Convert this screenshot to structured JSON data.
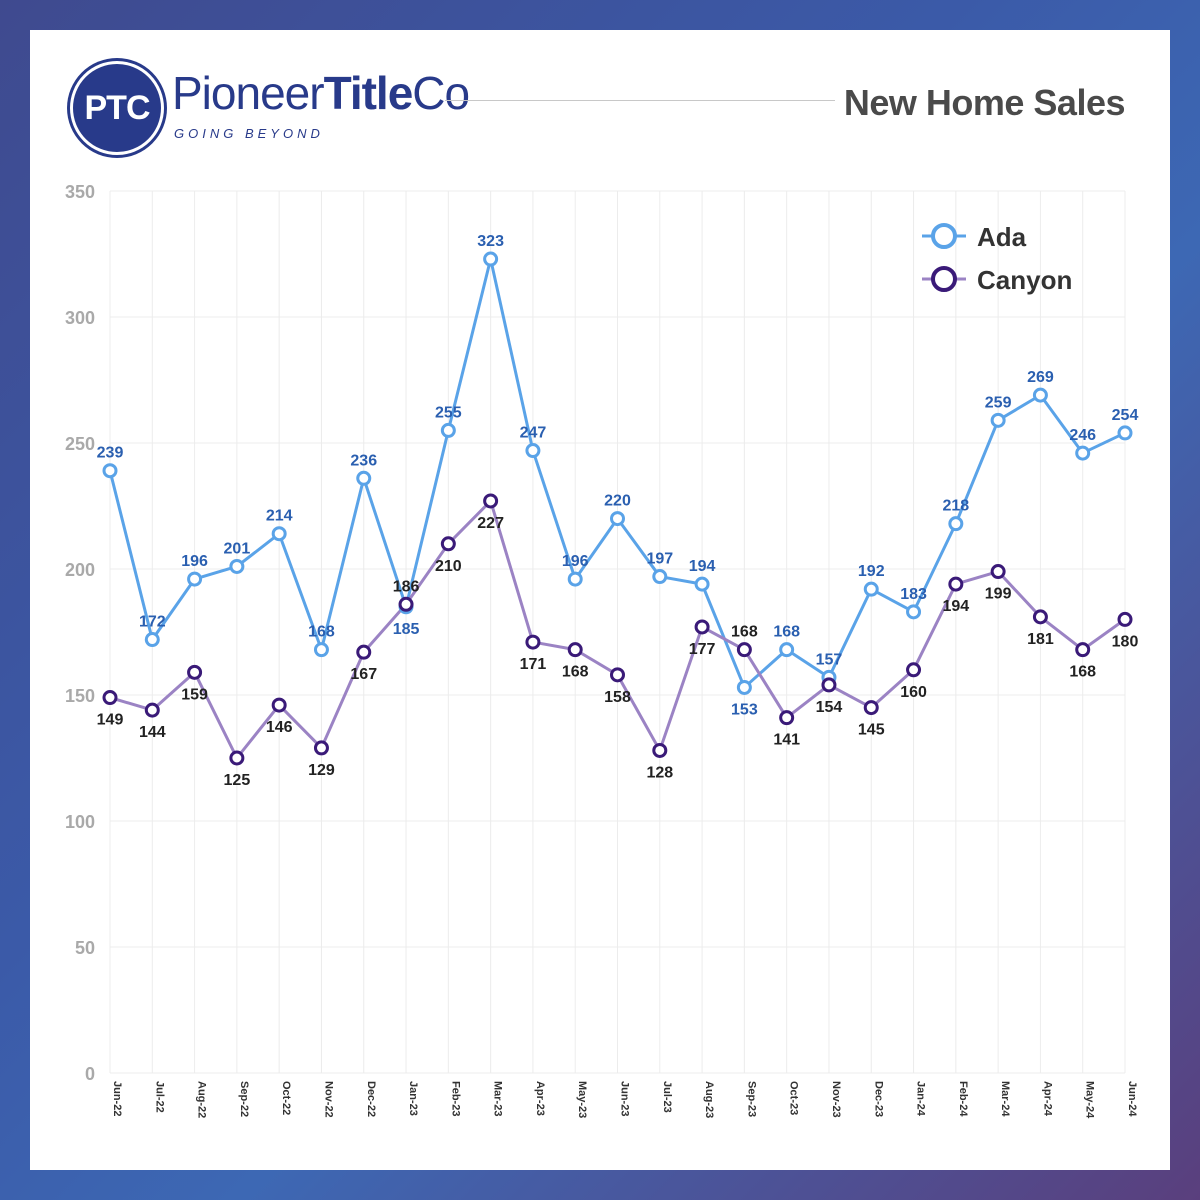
{
  "header": {
    "logo_initials": "PTC",
    "brand_regular": "Pioneer",
    "brand_bold": "Title",
    "brand_suffix": "Co",
    "tagline": "GOING BEYOND",
    "title": "New Home Sales"
  },
  "colors": {
    "ada": "#5aa3e8",
    "ada_label": "#2a5fb0",
    "canyon_line": "#9b83c4",
    "canyon_marker": "#3a1a78",
    "canyon_label": "#222222",
    "brand": "#283a8a"
  },
  "chart_data": {
    "type": "line",
    "title": "New Home Sales",
    "xlabel": "",
    "ylabel": "",
    "ylim": [
      0,
      350
    ],
    "yticks": [
      0,
      50,
      100,
      150,
      200,
      250,
      300,
      350
    ],
    "grid": true,
    "legend_position": "top-right",
    "categories": [
      "Jun-22",
      "Jul-22",
      "Aug-22",
      "Sep-22",
      "Oct-22",
      "Nov-22",
      "Dec-22",
      "Jan-23",
      "Feb-23",
      "Mar-23",
      "Apr-23",
      "May-23",
      "Jun-23",
      "Jul-23",
      "Aug-23",
      "Sep-23",
      "Oct-23",
      "Nov-23",
      "Dec-23",
      "Jan-24",
      "Feb-24",
      "Mar-24",
      "Apr-24",
      "May-24",
      "Jun-24"
    ],
    "series": [
      {
        "name": "Ada",
        "values": [
          239,
          172,
          196,
          201,
          214,
          168,
          236,
          185,
          255,
          323,
          247,
          196,
          220,
          197,
          194,
          153,
          168,
          157,
          192,
          183,
          218,
          259,
          269,
          246,
          254
        ]
      },
      {
        "name": "Canyon",
        "values": [
          149,
          144,
          159,
          125,
          146,
          129,
          167,
          186,
          210,
          227,
          171,
          168,
          158,
          128,
          177,
          168,
          141,
          154,
          145,
          160,
          194,
          199,
          181,
          168,
          180
        ]
      }
    ]
  }
}
